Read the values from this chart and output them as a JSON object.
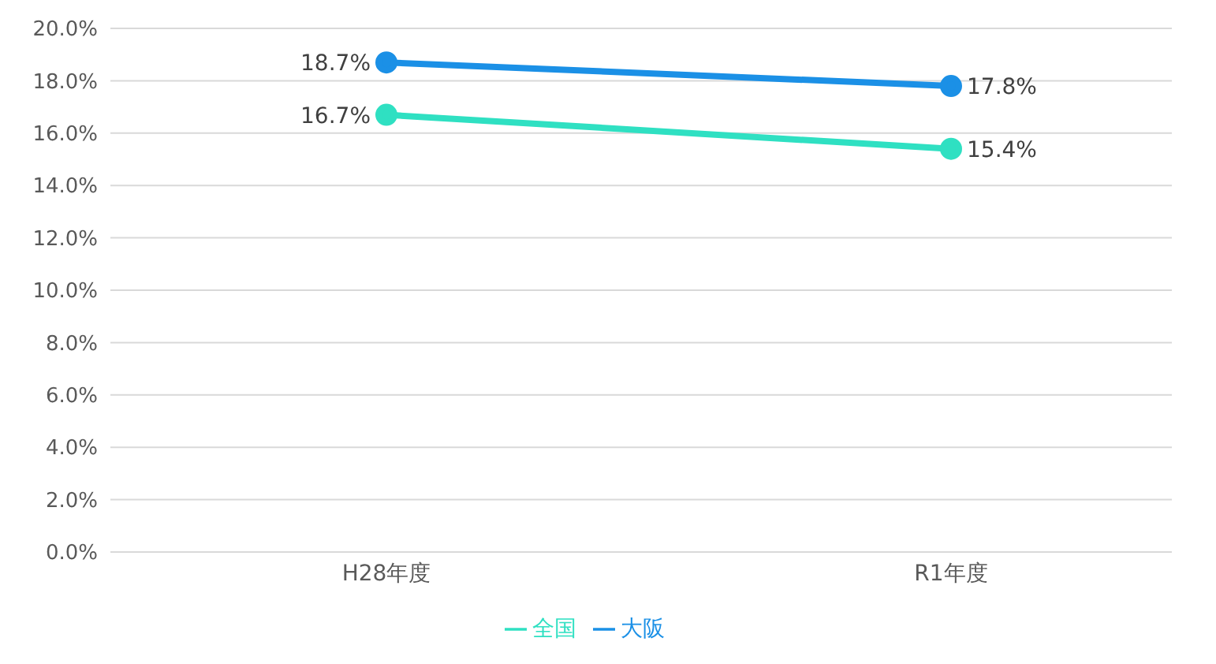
{
  "chart_data": {
    "type": "line",
    "categories": [
      "H28年度",
      "R1年度"
    ],
    "series": [
      {
        "name": "大阪",
        "color": "#1b90e6",
        "values": [
          18.7,
          17.8
        ],
        "value_labels": [
          "18.7%",
          "17.8%"
        ]
      },
      {
        "name": "全国",
        "color": "#2fe0c2",
        "values": [
          16.7,
          15.4
        ],
        "value_labels": [
          "16.7%",
          "15.4%"
        ]
      }
    ],
    "ylim": [
      0,
      20
    ],
    "yticks": [
      {
        "value": 0,
        "label": "0.0%"
      },
      {
        "value": 2,
        "label": "2.0%"
      },
      {
        "value": 4,
        "label": "4.0%"
      },
      {
        "value": 6,
        "label": "6.0%"
      },
      {
        "value": 8,
        "label": "8.0%"
      },
      {
        "value": 10,
        "label": "10.0%"
      },
      {
        "value": 12,
        "label": "12.0%"
      },
      {
        "value": 14,
        "label": "14.0%"
      },
      {
        "value": 16,
        "label": "16.0%"
      },
      {
        "value": 18,
        "label": "18.0%"
      },
      {
        "value": 20,
        "label": "20.0%"
      }
    ],
    "grid": "y",
    "legend": "bottom",
    "marker": "circle",
    "line_style": "solid"
  }
}
